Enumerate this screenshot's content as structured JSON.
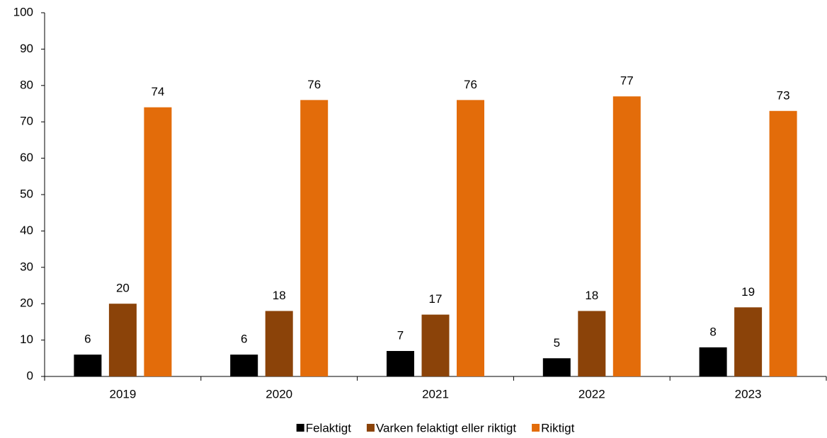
{
  "chart_data": {
    "type": "bar",
    "categories": [
      "2019",
      "2020",
      "2021",
      "2022",
      "2023"
    ],
    "series": [
      {
        "name": "Felaktigt",
        "color": "#000000",
        "values": [
          6,
          6,
          7,
          5,
          8
        ]
      },
      {
        "name": "Varken felaktigt eller riktigt",
        "color": "#8b4309",
        "values": [
          20,
          18,
          17,
          18,
          19
        ]
      },
      {
        "name": "Riktigt",
        "color": "#e36c0a",
        "values": [
          74,
          76,
          76,
          77,
          73
        ]
      }
    ],
    "ylim": [
      0,
      100
    ],
    "yticks": [
      0,
      10,
      20,
      30,
      40,
      50,
      60,
      70,
      80,
      90,
      100
    ],
    "grid": false,
    "legend": "bottom"
  }
}
